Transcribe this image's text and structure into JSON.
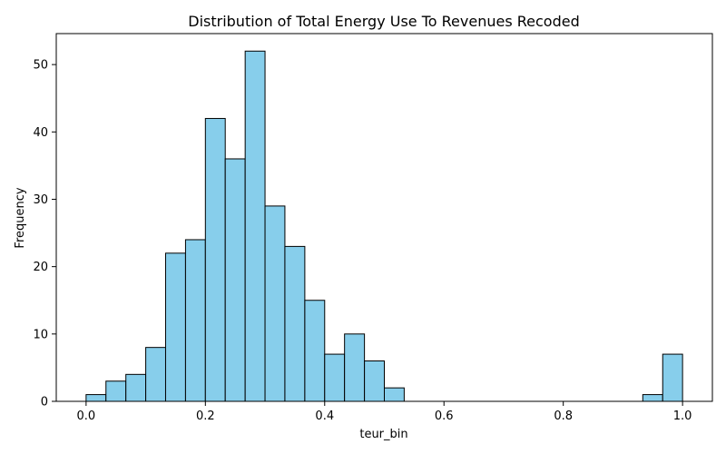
{
  "chart_data": {
    "type": "bar",
    "title": "Distribution of Total Energy Use To Revenues Recoded",
    "xlabel": "teur_bin",
    "ylabel": "Frequency",
    "xlim": [
      -0.05,
      1.05
    ],
    "ylim": [
      0,
      54.6
    ],
    "grid": false,
    "bar_color": "#87ceeb",
    "edge_color": "#000000",
    "bin_width": 0.0333,
    "bins": [
      {
        "x0": 0.0,
        "x1": 0.0333,
        "count": 1
      },
      {
        "x0": 0.0333,
        "x1": 0.0667,
        "count": 3
      },
      {
        "x0": 0.0667,
        "x1": 0.1,
        "count": 4
      },
      {
        "x0": 0.1,
        "x1": 0.1333,
        "count": 8
      },
      {
        "x0": 0.1333,
        "x1": 0.1667,
        "count": 22
      },
      {
        "x0": 0.1667,
        "x1": 0.2,
        "count": 24
      },
      {
        "x0": 0.2,
        "x1": 0.2333,
        "count": 42
      },
      {
        "x0": 0.2333,
        "x1": 0.2667,
        "count": 36
      },
      {
        "x0": 0.2667,
        "x1": 0.3,
        "count": 52
      },
      {
        "x0": 0.3,
        "x1": 0.3333,
        "count": 29
      },
      {
        "x0": 0.3333,
        "x1": 0.3667,
        "count": 23
      },
      {
        "x0": 0.3667,
        "x1": 0.4,
        "count": 15
      },
      {
        "x0": 0.4,
        "x1": 0.4333,
        "count": 7
      },
      {
        "x0": 0.4333,
        "x1": 0.4667,
        "count": 10
      },
      {
        "x0": 0.4667,
        "x1": 0.5,
        "count": 6
      },
      {
        "x0": 0.5,
        "x1": 0.5333,
        "count": 2
      },
      {
        "x0": 0.5333,
        "x1": 0.5667,
        "count": 0
      },
      {
        "x0": 0.5667,
        "x1": 0.6,
        "count": 0
      },
      {
        "x0": 0.6,
        "x1": 0.6333,
        "count": 0
      },
      {
        "x0": 0.6333,
        "x1": 0.6667,
        "count": 0
      },
      {
        "x0": 0.6667,
        "x1": 0.7,
        "count": 0
      },
      {
        "x0": 0.7,
        "x1": 0.7333,
        "count": 0
      },
      {
        "x0": 0.7333,
        "x1": 0.7667,
        "count": 0
      },
      {
        "x0": 0.7667,
        "x1": 0.8,
        "count": 0
      },
      {
        "x0": 0.8,
        "x1": 0.8333,
        "count": 0
      },
      {
        "x0": 0.8333,
        "x1": 0.8667,
        "count": 0
      },
      {
        "x0": 0.8667,
        "x1": 0.9,
        "count": 0
      },
      {
        "x0": 0.9,
        "x1": 0.9333,
        "count": 0
      },
      {
        "x0": 0.9333,
        "x1": 0.9667,
        "count": 1
      },
      {
        "x0": 0.9667,
        "x1": 1.0,
        "count": 7
      }
    ],
    "x_ticks": [
      0.0,
      0.2,
      0.4,
      0.6,
      0.8,
      1.0
    ],
    "x_tick_labels": [
      "0.0",
      "0.2",
      "0.4",
      "0.6",
      "0.8",
      "1.0"
    ],
    "y_ticks": [
      0,
      10,
      20,
      30,
      40,
      50
    ],
    "y_tick_labels": [
      "0",
      "10",
      "20",
      "30",
      "40",
      "50"
    ]
  }
}
